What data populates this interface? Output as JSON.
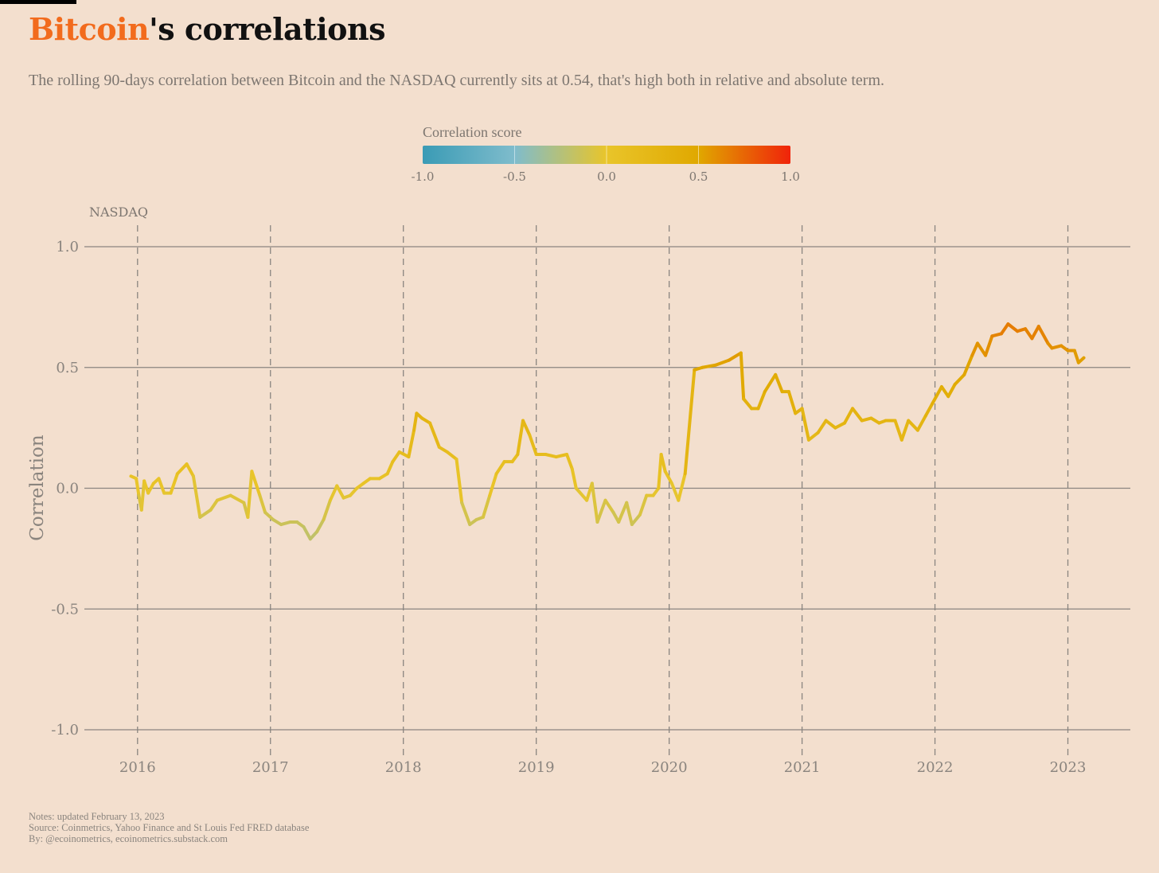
{
  "title": {
    "accent": "Bitcoin",
    "rest": "'s correlations"
  },
  "subtitle": "The rolling 90-days correlation between Bitcoin and the NASDAQ currently sits at 0.54, that's high both in relative and absolute term.",
  "legend": {
    "title": "Correlation score",
    "ticks": [
      "-1.0",
      "-0.5",
      "0.0",
      "0.5",
      "1.0"
    ],
    "stops": [
      {
        "v": -1.0,
        "color": "#3a9bb5"
      },
      {
        "v": -0.5,
        "color": "#7fbccc"
      },
      {
        "v": 0.0,
        "color": "#e9c52a"
      },
      {
        "v": 0.5,
        "color": "#e0a800"
      },
      {
        "v": 1.0,
        "color": "#f0230a"
      }
    ]
  },
  "notes": [
    "Notes: updated February 13, 2023",
    "Source: Coinmetrics, Yahoo Finance and St Louis Fed FRED database",
    "By: @ecoinometrics, ecoinometrics.substack.com"
  ],
  "chart_data": {
    "type": "line",
    "series_label": "NASDAQ",
    "ylabel": "Correlation",
    "xlabel": "",
    "ylim": [
      -1.0,
      1.0
    ],
    "yticks": [
      -1.0,
      -0.5,
      0.0,
      0.5,
      1.0
    ],
    "ytick_labels": [
      "-1.0",
      "-0.5",
      "0.0",
      "0.5",
      "1.0"
    ],
    "xlim": [
      2015.6,
      2023.47
    ],
    "xticks": [
      2016,
      2017,
      2018,
      2019,
      2020,
      2021,
      2022,
      2023
    ],
    "xtick_labels": [
      "2016",
      "2017",
      "2018",
      "2019",
      "2020",
      "2021",
      "2022",
      "2023"
    ],
    "grid": {
      "horizontal": "solid",
      "vertical": "dashed"
    },
    "color_scale": "correlation score",
    "points": [
      [
        2015.95,
        0.05
      ],
      [
        2015.99,
        0.04
      ],
      [
        2016.01,
        -0.03
      ],
      [
        2016.03,
        -0.09
      ],
      [
        2016.05,
        0.03
      ],
      [
        2016.08,
        -0.02
      ],
      [
        2016.12,
        0.02
      ],
      [
        2016.16,
        0.04
      ],
      [
        2016.2,
        -0.02
      ],
      [
        2016.25,
        -0.02
      ],
      [
        2016.3,
        0.06
      ],
      [
        2016.37,
        0.1
      ],
      [
        2016.42,
        0.05
      ],
      [
        2016.47,
        -0.12
      ],
      [
        2016.55,
        -0.09
      ],
      [
        2016.6,
        -0.05
      ],
      [
        2016.7,
        -0.03
      ],
      [
        2016.8,
        -0.06
      ],
      [
        2016.83,
        -0.12
      ],
      [
        2016.86,
        0.07
      ],
      [
        2016.92,
        -0.03
      ],
      [
        2016.96,
        -0.1
      ],
      [
        2017.02,
        -0.13
      ],
      [
        2017.08,
        -0.15
      ],
      [
        2017.15,
        -0.14
      ],
      [
        2017.2,
        -0.14
      ],
      [
        2017.25,
        -0.16
      ],
      [
        2017.3,
        -0.21
      ],
      [
        2017.35,
        -0.18
      ],
      [
        2017.4,
        -0.13
      ],
      [
        2017.45,
        -0.05
      ],
      [
        2017.5,
        0.01
      ],
      [
        2017.55,
        -0.04
      ],
      [
        2017.6,
        -0.03
      ],
      [
        2017.65,
        0.0
      ],
      [
        2017.7,
        0.02
      ],
      [
        2017.75,
        0.04
      ],
      [
        2017.82,
        0.04
      ],
      [
        2017.88,
        0.06
      ],
      [
        2017.92,
        0.11
      ],
      [
        2017.97,
        0.15
      ],
      [
        2018.04,
        0.13
      ],
      [
        2018.08,
        0.24
      ],
      [
        2018.1,
        0.31
      ],
      [
        2018.14,
        0.29
      ],
      [
        2018.2,
        0.27
      ],
      [
        2018.27,
        0.17
      ],
      [
        2018.33,
        0.15
      ],
      [
        2018.4,
        0.12
      ],
      [
        2018.44,
        -0.06
      ],
      [
        2018.5,
        -0.15
      ],
      [
        2018.55,
        -0.13
      ],
      [
        2018.6,
        -0.12
      ],
      [
        2018.65,
        -0.03
      ],
      [
        2018.7,
        0.06
      ],
      [
        2018.76,
        0.11
      ],
      [
        2018.82,
        0.11
      ],
      [
        2018.86,
        0.14
      ],
      [
        2018.9,
        0.28
      ],
      [
        2018.95,
        0.22
      ],
      [
        2019.0,
        0.14
      ],
      [
        2019.07,
        0.14
      ],
      [
        2019.15,
        0.13
      ],
      [
        2019.23,
        0.14
      ],
      [
        2019.27,
        0.08
      ],
      [
        2019.3,
        0.0
      ],
      [
        2019.38,
        -0.05
      ],
      [
        2019.42,
        0.02
      ],
      [
        2019.46,
        -0.14
      ],
      [
        2019.52,
        -0.05
      ],
      [
        2019.58,
        -0.1
      ],
      [
        2019.62,
        -0.14
      ],
      [
        2019.68,
        -0.06
      ],
      [
        2019.72,
        -0.15
      ],
      [
        2019.78,
        -0.11
      ],
      [
        2019.83,
        -0.03
      ],
      [
        2019.88,
        -0.03
      ],
      [
        2019.92,
        0.0
      ],
      [
        2019.94,
        0.14
      ],
      [
        2019.97,
        0.07
      ],
      [
        2020.02,
        0.02
      ],
      [
        2020.07,
        -0.05
      ],
      [
        2020.12,
        0.06
      ],
      [
        2020.19,
        0.49
      ],
      [
        2020.25,
        0.5
      ],
      [
        2020.35,
        0.51
      ],
      [
        2020.45,
        0.53
      ],
      [
        2020.54,
        0.56
      ],
      [
        2020.56,
        0.37
      ],
      [
        2020.62,
        0.33
      ],
      [
        2020.67,
        0.33
      ],
      [
        2020.72,
        0.4
      ],
      [
        2020.8,
        0.47
      ],
      [
        2020.85,
        0.4
      ],
      [
        2020.9,
        0.4
      ],
      [
        2020.95,
        0.31
      ],
      [
        2021.0,
        0.33
      ],
      [
        2021.05,
        0.2
      ],
      [
        2021.12,
        0.23
      ],
      [
        2021.18,
        0.28
      ],
      [
        2021.25,
        0.25
      ],
      [
        2021.32,
        0.27
      ],
      [
        2021.38,
        0.33
      ],
      [
        2021.45,
        0.28
      ],
      [
        2021.52,
        0.29
      ],
      [
        2021.58,
        0.27
      ],
      [
        2021.63,
        0.28
      ],
      [
        2021.7,
        0.28
      ],
      [
        2021.75,
        0.2
      ],
      [
        2021.8,
        0.28
      ],
      [
        2021.87,
        0.24
      ],
      [
        2021.93,
        0.3
      ],
      [
        2021.98,
        0.35
      ],
      [
        2022.05,
        0.42
      ],
      [
        2022.1,
        0.38
      ],
      [
        2022.15,
        0.43
      ],
      [
        2022.22,
        0.47
      ],
      [
        2022.28,
        0.55
      ],
      [
        2022.32,
        0.6
      ],
      [
        2022.38,
        0.55
      ],
      [
        2022.43,
        0.63
      ],
      [
        2022.5,
        0.64
      ],
      [
        2022.55,
        0.68
      ],
      [
        2022.62,
        0.65
      ],
      [
        2022.68,
        0.66
      ],
      [
        2022.73,
        0.62
      ],
      [
        2022.78,
        0.67
      ],
      [
        2022.85,
        0.6
      ],
      [
        2022.88,
        0.58
      ],
      [
        2022.95,
        0.59
      ],
      [
        2023.0,
        0.57
      ],
      [
        2023.05,
        0.57
      ],
      [
        2023.08,
        0.52
      ],
      [
        2023.12,
        0.54
      ]
    ]
  }
}
